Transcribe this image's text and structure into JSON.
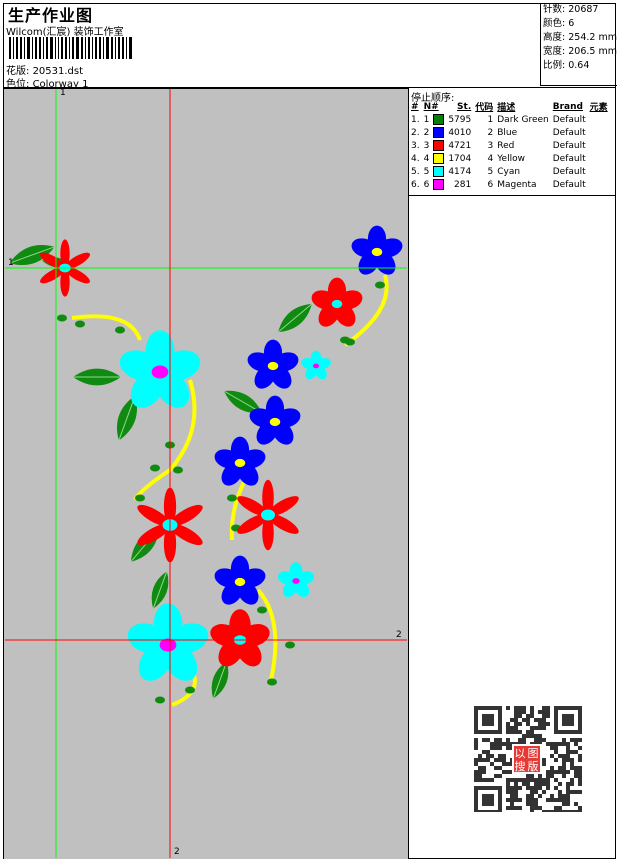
{
  "header": {
    "title": "生产作业图",
    "studio": "Wilcom(汇宸) 装饰工作室",
    "design_label": "花版:",
    "design_file": "20531.dst",
    "colorway_label": "色位:",
    "colorway": "Colorway 1"
  },
  "info": {
    "stitches_label": "针数:",
    "stitches": "20687",
    "colors_label": "颜色:",
    "colors": "6",
    "height_label": "高度:",
    "height": "254.2 mm",
    "width_label": "宽度:",
    "width": "206.5 mm",
    "scale_label": "比例:",
    "scale": "0.64"
  },
  "stop_sequence": {
    "caption": "停止顺序:",
    "columns": [
      "#",
      "N#",
      "St.",
      "代码",
      "描述",
      "Brand",
      "元素"
    ],
    "rows": [
      {
        "idx": "1.",
        "n": "1",
        "color": "#008000",
        "st": "5795",
        "code": "1",
        "desc": "Dark Green",
        "brand": "Default"
      },
      {
        "idx": "2.",
        "n": "2",
        "color": "#0000ff",
        "st": "4010",
        "code": "2",
        "desc": "Blue",
        "brand": "Default"
      },
      {
        "idx": "3.",
        "n": "3",
        "color": "#ff0000",
        "st": "4721",
        "code": "3",
        "desc": "Red",
        "brand": "Default"
      },
      {
        "idx": "4.",
        "n": "4",
        "color": "#ffff00",
        "st": "1704",
        "code": "4",
        "desc": "Yellow",
        "brand": "Default"
      },
      {
        "idx": "5.",
        "n": "5",
        "color": "#00ffff",
        "st": "4174",
        "code": "5",
        "desc": "Cyan",
        "brand": "Default"
      },
      {
        "idx": "6.",
        "n": "6",
        "color": "#ff00ff",
        "st": "281",
        "code": "6",
        "desc": "Magenta",
        "brand": "Default"
      }
    ]
  },
  "guides": {
    "green_label": "1",
    "red_label": "2",
    "green_color": "#00ff00",
    "red_color": "#ff0000"
  },
  "qr": {
    "stamp_text": "以图搜版",
    "stamp_color": "#e53935"
  }
}
